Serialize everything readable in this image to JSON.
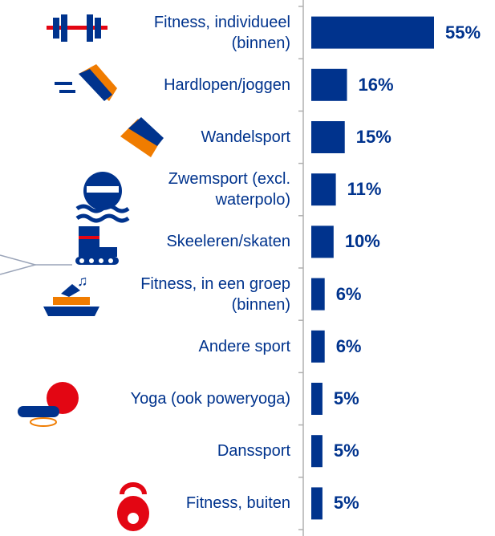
{
  "chart_data": {
    "type": "bar",
    "orientation": "horizontal",
    "categories": [
      "Fitness, individueel (binnen)",
      "Hardlopen/joggen",
      "Wandelsport",
      "Zwemsport (excl. waterpolo)",
      "Skeeleren/skaten",
      "Fitness, in een groep (binnen)",
      "Andere sport",
      "Yoga (ook poweryoga)",
      "Danssport",
      "Fitness, buiten"
    ],
    "values": [
      55,
      16,
      15,
      11,
      10,
      6,
      6,
      5,
      5,
      5
    ],
    "value_labels": [
      "55%",
      "16%",
      "15%",
      "11%",
      "10%",
      "6%",
      "6%",
      "5%",
      "5%",
      "5%"
    ],
    "color": "#00338d"
  }
}
